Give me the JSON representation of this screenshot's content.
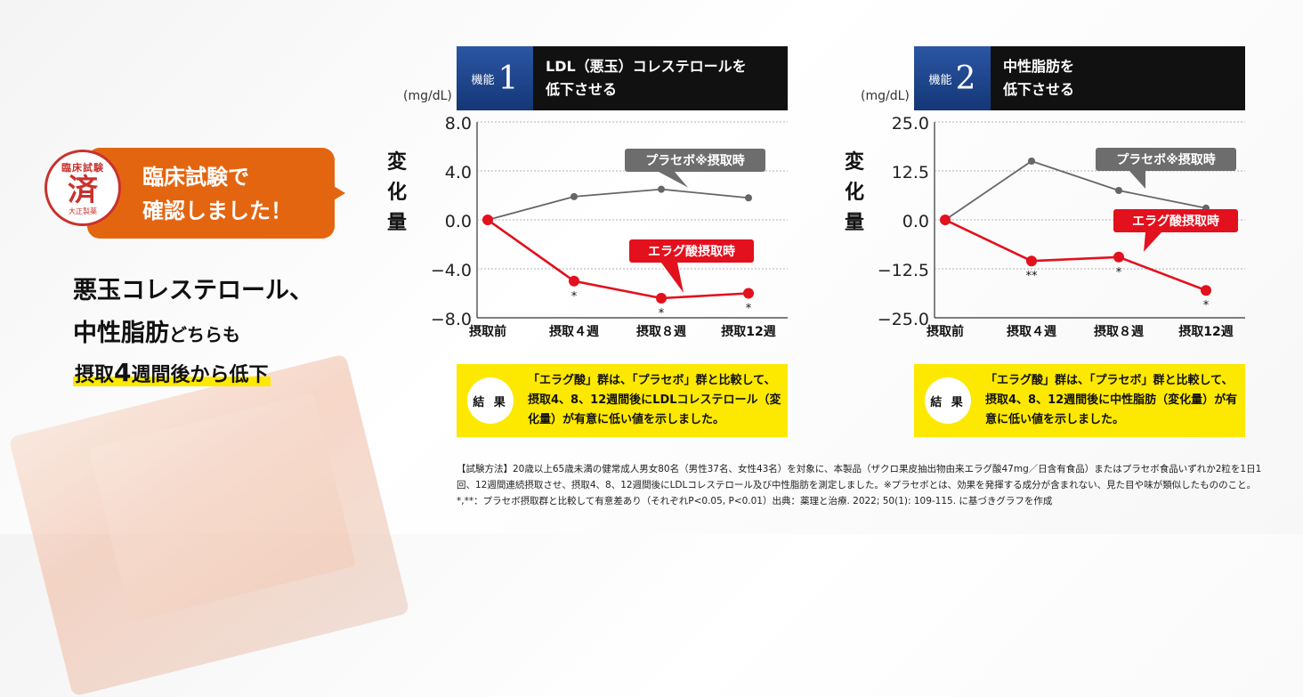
{
  "callout": {
    "stamp_top": "臨床試験",
    "stamp_main": "済",
    "stamp_bottom": "大正製薬",
    "bubble_line1": "臨床試験で",
    "bubble_line2": "確認しました！"
  },
  "headline": {
    "line1": "悪玉コレステロール、",
    "line2_a": "中性脂肪",
    "line2_b": "どちらも",
    "line3_a": "摂取",
    "line3_b": "4",
    "line3_c": "週間後から低下"
  },
  "panels": [
    {
      "badge_label": "機能",
      "badge_num": "1",
      "title_line1": "LDL（悪玉）コレステロールを",
      "title_line2": "低下させる",
      "unit": "(mg/dL)",
      "ylabel": "変化量",
      "result_label": "結 果",
      "result_text": "「エラグ酸」群は、「プラセボ」群と比較して、摂取4、8、12週間後にLDLコレステロール（変化量）が有意に低い値を示しました。"
    },
    {
      "badge_label": "機能",
      "badge_num": "2",
      "title_line1": "中性脂肪を",
      "title_line2": "低下させる",
      "unit": "(mg/dL)",
      "ylabel": "変化量",
      "result_label": "結 果",
      "result_text": "「エラグ酸」群は、「プラセボ」群と比較して、摂取4、8、12週間後に中性脂肪（変化量）が有意に低い値を示しました。"
    }
  ],
  "chart_data": [
    {
      "type": "line",
      "categories": [
        "摂取前",
        "摂取４週",
        "摂取８週",
        "摂取12週"
      ],
      "ylim": [
        -8.0,
        8.0
      ],
      "yticks": [
        "8.0",
        "4.0",
        "0.0",
        "−4.0",
        "−8.0"
      ],
      "ytick_values": [
        8,
        4,
        0,
        -4,
        -8
      ],
      "series": [
        {
          "name": "プラセボ※摂取時",
          "color": "#666666",
          "values": [
            0,
            1.9,
            2.5,
            1.8
          ]
        },
        {
          "name": "エラグ酸摂取時",
          "color": "#e3101d",
          "values": [
            0,
            -5.0,
            -6.4,
            -6.0
          ],
          "marks": [
            "",
            "*",
            "*",
            "*"
          ]
        }
      ]
    },
    {
      "type": "line",
      "categories": [
        "摂取前",
        "摂取４週",
        "摂取８週",
        "摂取12週"
      ],
      "ylim": [
        -25.0,
        25.0
      ],
      "yticks": [
        "25.0",
        "12.5",
        "0.0",
        "−12.5",
        "−25.0"
      ],
      "ytick_values": [
        25,
        12.5,
        0,
        -12.5,
        -25
      ],
      "series": [
        {
          "name": "プラセボ※摂取時",
          "color": "#666666",
          "values": [
            0,
            15.0,
            7.5,
            3.0
          ]
        },
        {
          "name": "エラグ酸摂取時",
          "color": "#e3101d",
          "values": [
            0,
            -10.5,
            -9.5,
            -18.0
          ],
          "marks": [
            "",
            "**",
            "*",
            "*"
          ]
        }
      ]
    }
  ],
  "method_text": "【試験方法】20歳以上65歳未満の健常成人男女80名（男性37名、女性43名）を対象に、本製品（ザクロ果皮抽出物由来エラグ酸47mg／日含有食品）またはプラセボ食品いずれか2粒を1日1回、12週間連続摂取させ、摂取4、8、12週間後にLDLコレステロール及び中性脂肪を測定しました。※プラセボとは、効果を発揮する成分が含まれない、見た目や味が類似したもののこと。*,**：プラセボ摂取群と比較して有意差あり（それぞれP<0.05, P<0.01）出典：薬理と治療. 2022; 50(1): 109-115. に基づきグラフを作成"
}
